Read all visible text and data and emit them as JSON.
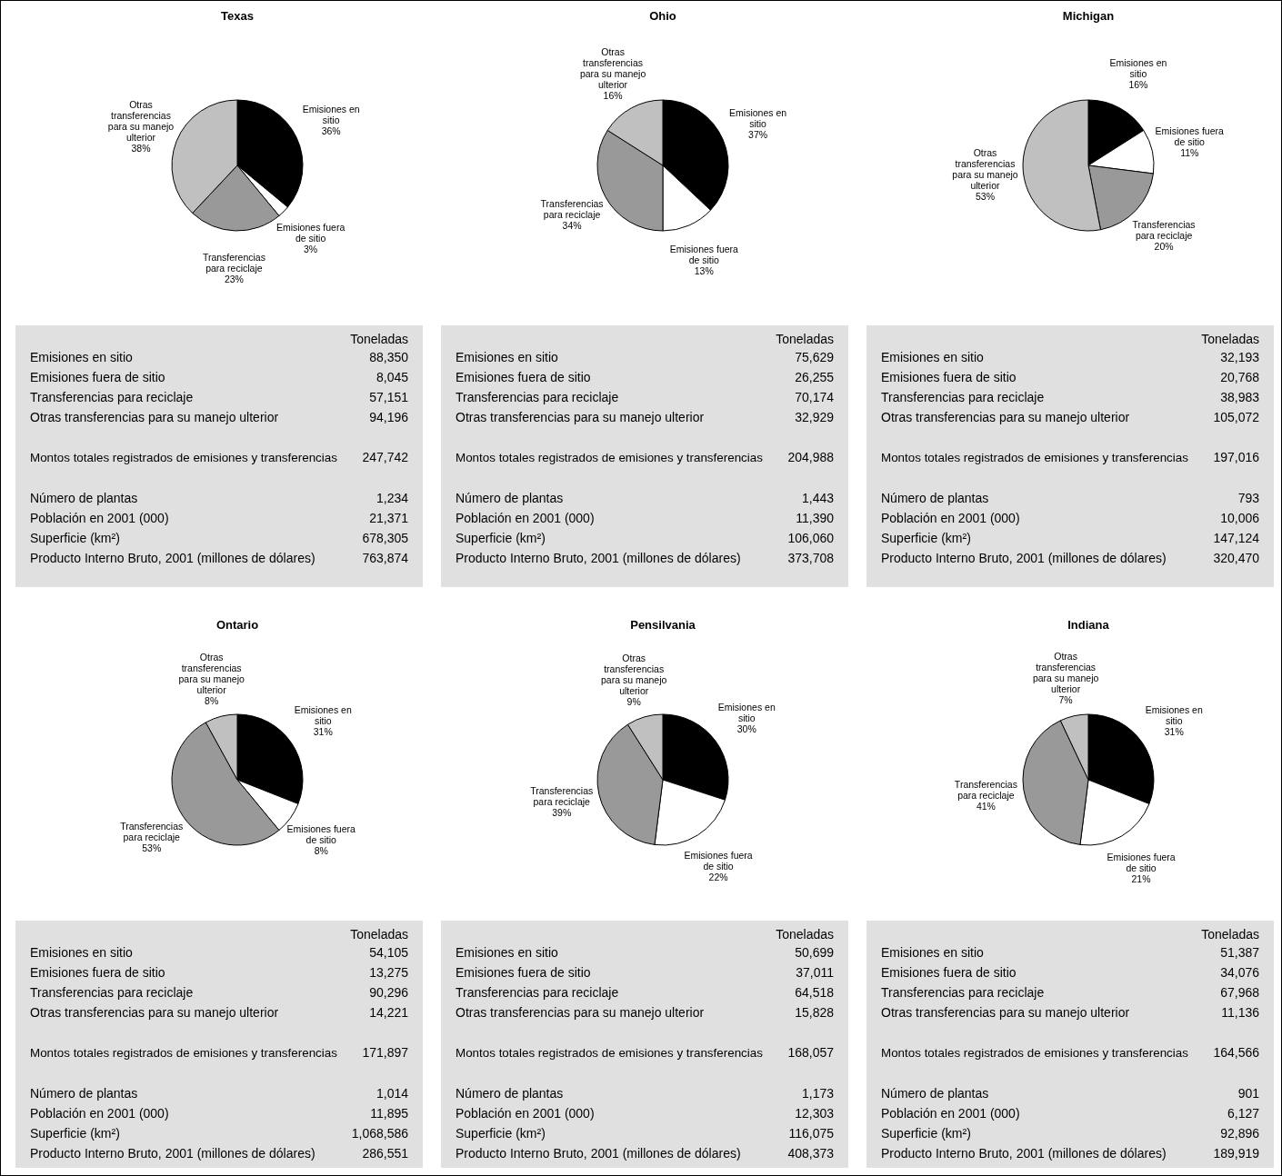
{
  "chart_data": [
    {
      "type": "pie",
      "title": "Texas",
      "categories": [
        "Emisiones en sitio",
        "Emisiones fuera de sitio",
        "Transferencias para reciclaje",
        "Otras transferencias para su manejo ulterior"
      ],
      "values": [
        36,
        3,
        23,
        38
      ],
      "value_labels": [
        "36%",
        "3%",
        "23%",
        "38%"
      ],
      "colors": [
        "#000000",
        "#ffffff",
        "#999999",
        "#c0c0c0"
      ]
    },
    {
      "type": "pie",
      "title": "Ohio",
      "categories": [
        "Emisiones en sitio",
        "Emisiones fuera de sitio",
        "Transferencias para reciclaje",
        "Otras transferencias para su manejo ulterior"
      ],
      "values": [
        37,
        13,
        34,
        16
      ],
      "value_labels": [
        "37%",
        "13%",
        "34%",
        "16%"
      ],
      "colors": [
        "#000000",
        "#ffffff",
        "#999999",
        "#c0c0c0"
      ]
    },
    {
      "type": "pie",
      "title": "Michigan",
      "categories": [
        "Emisiones en sitio",
        "Emisiones fuera de sitio",
        "Transferencias para reciclaje",
        "Otras transferencias para su manejo ulterior"
      ],
      "values": [
        16,
        11,
        20,
        53
      ],
      "value_labels": [
        "16%",
        "11%",
        "20%",
        "53%"
      ],
      "colors": [
        "#000000",
        "#ffffff",
        "#999999",
        "#c0c0c0"
      ]
    },
    {
      "type": "other",
      "title": "Toneladas",
      "categories": [
        "Emisiones en sitio",
        "Emisiones fuera de sitio",
        "Transferencias para reciclaje",
        "Otras transferencias para su manejo ulterior",
        "Montos totales registrados de emisiones y transferencias",
        "Número de plantas",
        "Población en 2001 (000)",
        "Superficie (km²)",
        "Producto Interno Bruto, 2001 (millones de dólares)"
      ],
      "value_labels": [
        "88,350",
        "8,045",
        "57,151",
        "94,196",
        "247,742",
        "1,234",
        "21,371",
        "678,305",
        "763,874"
      ]
    },
    {
      "type": "other",
      "title": "Toneladas",
      "categories": [
        "Emisiones en sitio",
        "Emisiones fuera de sitio",
        "Transferencias para reciclaje",
        "Otras transferencias para su manejo ulterior",
        "Montos totales registrados de emisiones y transferencias",
        "Número de plantas",
        "Población en 2001 (000)",
        "Superficie (km²)",
        "Producto Interno Bruto, 2001 (millones de dólares)"
      ],
      "value_labels": [
        "75,629",
        "26,255",
        "70,174",
        "32,929",
        "204,988",
        "1,443",
        "11,390",
        "106,060",
        "373,708"
      ]
    },
    {
      "type": "other",
      "title": "Toneladas",
      "categories": [
        "Emisiones en sitio",
        "Emisiones fuera de sitio",
        "Transferencias para reciclaje",
        "Otras transferencias para su manejo ulterior",
        "Montos totales registrados de emisiones y transferencias",
        "Número de plantas",
        "Población en 2001 (000)",
        "Superficie (km²)",
        "Producto Interno Bruto, 2001 (millones de dólares)"
      ],
      "value_labels": [
        "32,193",
        "20,768",
        "38,983",
        "105,072",
        "197,016",
        "793",
        "10,006",
        "147,124",
        "320,470"
      ]
    },
    {
      "type": "pie",
      "title": "Ontario",
      "categories": [
        "Emisiones en sitio",
        "Emisiones fuera de sitio",
        "Transferencias para reciclaje",
        "Otras transferencias para su manejo ulterior"
      ],
      "values": [
        31,
        8,
        53,
        8
      ],
      "value_labels": [
        "31%",
        "8%",
        "53%",
        "8%"
      ],
      "colors": [
        "#000000",
        "#ffffff",
        "#999999",
        "#c0c0c0"
      ]
    },
    {
      "type": "pie",
      "title": "Pensilvania",
      "categories": [
        "Emisiones en sitio",
        "Emisiones fuera de sitio",
        "Transferencias para reciclaje",
        "Otras transferencias para su manejo ulterior"
      ],
      "values": [
        30,
        22,
        39,
        9
      ],
      "value_labels": [
        "30%",
        "22%",
        "39%",
        "9%"
      ],
      "colors": [
        "#000000",
        "#ffffff",
        "#999999",
        "#c0c0c0"
      ]
    },
    {
      "type": "pie",
      "title": "Indiana",
      "categories": [
        "Emisiones en sitio",
        "Emisiones fuera de sitio",
        "Transferencias para reciclaje",
        "Otras transferencias para su manejo ulterior"
      ],
      "values": [
        31,
        21,
        41,
        7
      ],
      "value_labels": [
        "31%",
        "21%",
        "41%",
        "7%"
      ],
      "colors": [
        "#000000",
        "#ffffff",
        "#999999",
        "#c0c0c0"
      ]
    },
    {
      "type": "other",
      "title": "Toneladas",
      "categories": [
        "Emisiones en sitio",
        "Emisiones fuera de sitio",
        "Transferencias para reciclaje",
        "Otras transferencias para su manejo ulterior",
        "Montos totales registrados de emisiones y transferencias",
        "Número de plantas",
        "Población en 2001 (000)",
        "Superficie (km²)",
        "Producto Interno Bruto, 2001 (millones de dólares)"
      ],
      "value_labels": [
        "54,105",
        "13,275",
        "90,296",
        "14,221",
        "171,897",
        "1,014",
        "11,895",
        "1,068,586",
        "286,551"
      ]
    },
    {
      "type": "other",
      "title": "Toneladas",
      "categories": [
        "Emisiones en sitio",
        "Emisiones fuera de sitio",
        "Transferencias para reciclaje",
        "Otras transferencias para su manejo ulterior",
        "Montos totales registrados de emisiones y transferencias",
        "Número de plantas",
        "Población en 2001 (000)",
        "Superficie (km²)",
        "Producto Interno Bruto, 2001 (millones de dólares)"
      ],
      "value_labels": [
        "50,699",
        "37,011",
        "64,518",
        "15,828",
        "168,057",
        "1,173",
        "12,303",
        "116,075",
        "408,373"
      ]
    },
    {
      "type": "other",
      "title": "Toneladas",
      "categories": [
        "Emisiones en sitio",
        "Emisiones fuera de sitio",
        "Transferencias para reciclaje",
        "Otras transferencias para su manejo ulterior",
        "Montos totales registrados de emisiones y transferencias",
        "Número de plantas",
        "Población en 2001 (000)",
        "Superficie (km²)",
        "Producto Interno Bruto, 2001 (millones de dólares)"
      ],
      "value_labels": [
        "51,387",
        "34,076",
        "67,968",
        "11,136",
        "164,566",
        "901",
        "6,127",
        "92,896",
        "189,919"
      ]
    }
  ]
}
